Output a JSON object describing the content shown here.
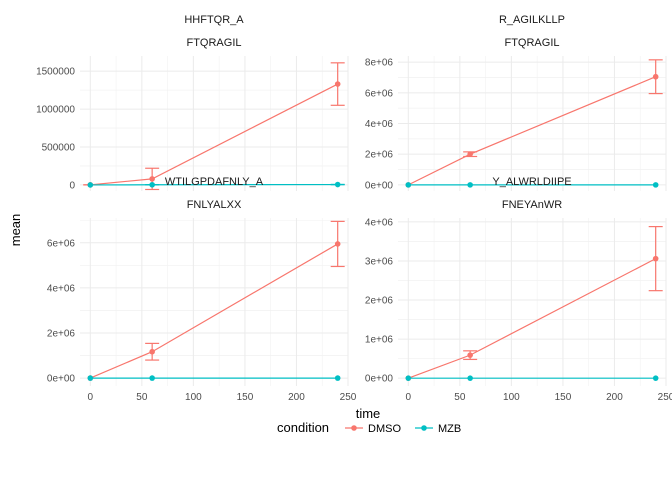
{
  "chart_data": {
    "type": "line",
    "xlabel": "time",
    "ylabel": "mean",
    "legend": {
      "title": "condition",
      "position": "bottom",
      "entries": [
        {
          "label": "DMSO",
          "color": "#F8766D"
        },
        {
          "label": "MZB",
          "color": "#00BFC4"
        }
      ]
    },
    "x_ticks": [
      "0",
      "50",
      "100",
      "150",
      "200",
      "250"
    ],
    "xlim": [
      -10,
      250
    ],
    "panels": [
      {
        "strip_top": "HHFTQR_A",
        "strip_bottom": "FTQRAGIL",
        "ylim": [
          -80000,
          1700000
        ],
        "y_ticks": [
          {
            "v": 0,
            "label": "0"
          },
          {
            "v": 500000,
            "label": "500000"
          },
          {
            "v": 1000000,
            "label": "1000000"
          },
          {
            "v": 1500000,
            "label": "1500000"
          }
        ],
        "series": [
          {
            "name": "DMSO",
            "x": [
              0,
              60,
              240
            ],
            "y": [
              1000,
              80000,
              1330000
            ],
            "err": [
              1000,
              140000,
              280000
            ]
          },
          {
            "name": "MZB",
            "x": [
              0,
              60,
              240
            ],
            "y": [
              0,
              2000,
              5000
            ],
            "err": [
              0,
              1000,
              2000
            ]
          }
        ]
      },
      {
        "strip_top": "R_AGILKLLP",
        "strip_bottom": "FTQRAGIL",
        "ylim": [
          -400000,
          8400000
        ],
        "y_ticks": [
          {
            "v": 0,
            "label": "0e+00"
          },
          {
            "v": 2000000,
            "label": "2e+06"
          },
          {
            "v": 4000000,
            "label": "4e+06"
          },
          {
            "v": 6000000,
            "label": "6e+06"
          },
          {
            "v": 8000000,
            "label": "8e+06"
          }
        ],
        "series": [
          {
            "name": "DMSO",
            "x": [
              0,
              60,
              240
            ],
            "y": [
              0,
              2000000,
              7050000
            ],
            "err": [
              0,
              150000,
              1100000
            ]
          },
          {
            "name": "MZB",
            "x": [
              0,
              60,
              240
            ],
            "y": [
              0,
              0,
              0
            ],
            "err": [
              0,
              0,
              0
            ]
          }
        ]
      },
      {
        "strip_top": "WTILGPDAFNLY_A",
        "strip_bottom": "FNLYALXX",
        "ylim": [
          -350000,
          7100000
        ],
        "y_ticks": [
          {
            "v": 0,
            "label": "0e+00"
          },
          {
            "v": 2000000,
            "label": "2e+06"
          },
          {
            "v": 4000000,
            "label": "4e+06"
          },
          {
            "v": 6000000,
            "label": "6e+06"
          }
        ],
        "series": [
          {
            "name": "DMSO",
            "x": [
              0,
              60,
              240
            ],
            "y": [
              0,
              1170000,
              5950000
            ],
            "err": [
              0,
              370000,
              1000000
            ]
          },
          {
            "name": "MZB",
            "x": [
              0,
              60,
              240
            ],
            "y": [
              0,
              0,
              0
            ],
            "err": [
              0,
              0,
              0
            ]
          }
        ]
      },
      {
        "strip_top": "Y_ALWRLDIIPE",
        "strip_bottom": "FNEYAnWR",
        "ylim": [
          -200000,
          4100000
        ],
        "y_ticks": [
          {
            "v": 0,
            "label": "0e+00"
          },
          {
            "v": 1000000,
            "label": "1e+06"
          },
          {
            "v": 2000000,
            "label": "2e+06"
          },
          {
            "v": 3000000,
            "label": "3e+06"
          },
          {
            "v": 4000000,
            "label": "4e+06"
          }
        ],
        "series": [
          {
            "name": "DMSO",
            "x": [
              0,
              60,
              240
            ],
            "y": [
              0,
              590000,
              3060000
            ],
            "err": [
              0,
              110000,
              820000
            ]
          },
          {
            "name": "MZB",
            "x": [
              0,
              60,
              240
            ],
            "y": [
              0,
              0,
              0
            ],
            "err": [
              0,
              0,
              0
            ]
          }
        ]
      }
    ]
  }
}
